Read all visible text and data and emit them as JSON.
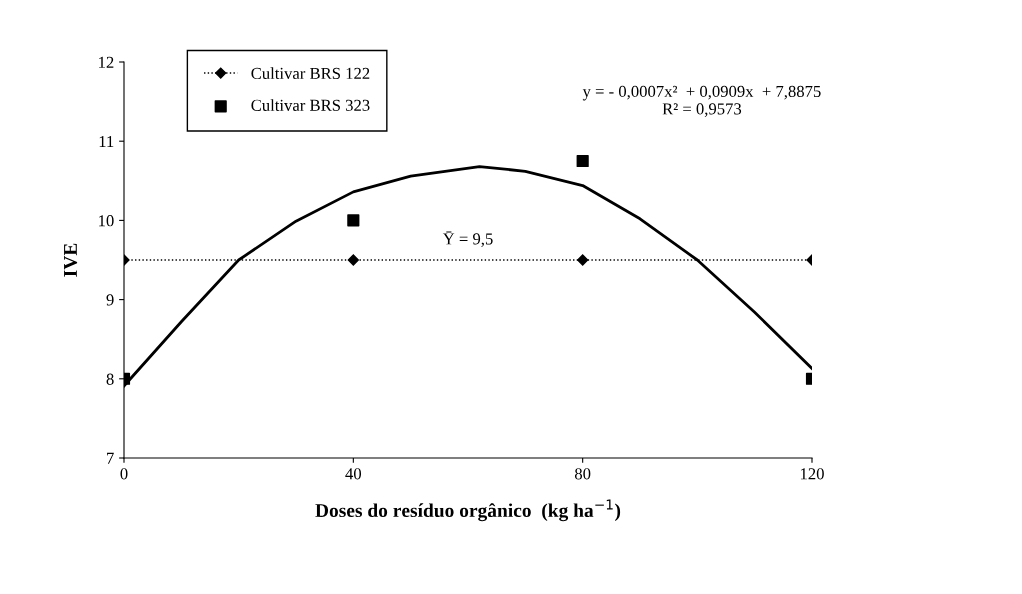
{
  "chart_data": {
    "type": "line",
    "xlabel": "Doses do resíduo orgânico  (kg ha$^{−1}$)",
    "ylabel": "IVE",
    "xlim": [
      0,
      120
    ],
    "xticks": [
      0,
      40,
      80,
      120
    ],
    "ylim": [
      7,
      12
    ],
    "yticks": [
      7,
      8,
      9,
      10,
      11,
      12
    ],
    "grid": false,
    "legend": "top left",
    "series": [
      {
        "name": "Cultivar BRS 122",
        "color": "#000000",
        "marker": "diamond",
        "line_style": "dotted",
        "x": [
          0,
          40,
          80,
          120
        ],
        "values": [
          9.5,
          9.5,
          9.5,
          9.5
        ]
      },
      {
        "name": "Cultivar BRS 323",
        "type": "scatter",
        "color": "#000000",
        "marker": "square",
        "x": [
          0,
          40,
          80,
          120
        ],
        "values": [
          8,
          10,
          10.75,
          8
        ]
      },
      {
        "color": "#000000",
        "marker": "none",
        "line_style": "solid",
        "x": [
          0,
          10,
          20,
          30,
          40,
          50,
          62,
          70,
          80,
          90,
          100,
          110,
          120
        ],
        "values": [
          7.91,
          8.72,
          9.5,
          9.99,
          10.36,
          10.56,
          10.68,
          10.62,
          10.44,
          10.02,
          9.5,
          8.84,
          8.13
        ]
      }
    ],
    "annotations": [
      "y = - 0,0007x²  + 0,0909x  + 7,8875\nR² = 0,9573",
      "Ȳ = 9,5"
    ]
  }
}
